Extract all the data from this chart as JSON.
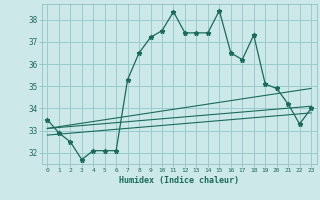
{
  "xlabel": "Humidex (Indice chaleur)",
  "bg_color": "#cce8e8",
  "grid_color": "#99cccc",
  "line_color": "#1a6b5a",
  "xlim": [
    -0.5,
    23.5
  ],
  "ylim": [
    31.5,
    38.7
  ],
  "yticks": [
    32,
    33,
    34,
    35,
    36,
    37,
    38
  ],
  "xticks": [
    0,
    1,
    2,
    3,
    4,
    5,
    6,
    7,
    8,
    9,
    10,
    11,
    12,
    13,
    14,
    15,
    16,
    17,
    18,
    19,
    20,
    21,
    22,
    23
  ],
  "main_x": [
    0,
    1,
    2,
    3,
    4,
    5,
    6,
    7,
    8,
    9,
    10,
    11,
    12,
    13,
    14,
    15,
    16,
    17,
    18,
    19,
    20,
    21,
    22,
    23
  ],
  "main_y": [
    33.5,
    32.9,
    32.5,
    31.7,
    32.1,
    32.1,
    32.1,
    35.3,
    36.5,
    37.2,
    37.5,
    38.35,
    37.4,
    37.4,
    37.4,
    38.4,
    36.5,
    36.2,
    37.3,
    35.1,
    34.9,
    34.2,
    33.3,
    34.0
  ],
  "line1_x": [
    0,
    23
  ],
  "line1_y": [
    33.1,
    34.9
  ],
  "line2_x": [
    0,
    23
  ],
  "line2_y": [
    33.1,
    34.1
  ],
  "line3_x": [
    0,
    23
  ],
  "line3_y": [
    32.8,
    33.8
  ]
}
